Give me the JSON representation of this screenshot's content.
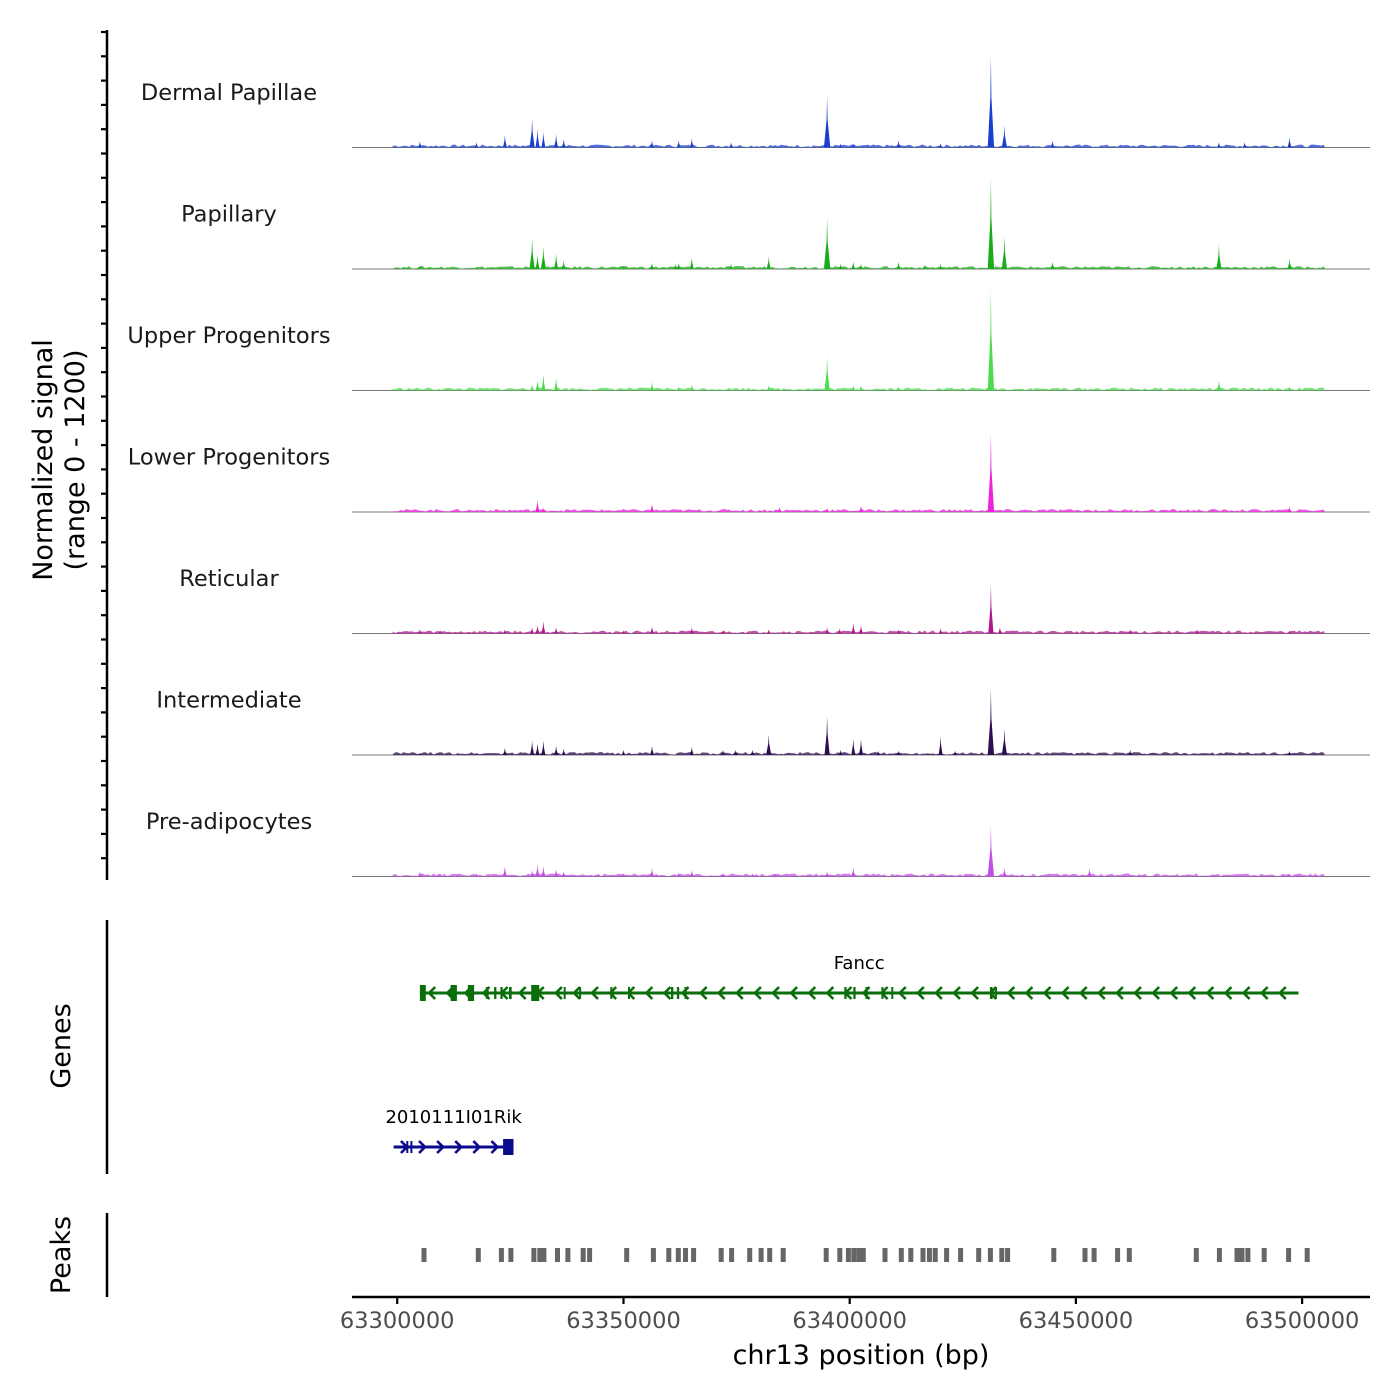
{
  "chart_data": {
    "type": "coverage-track",
    "chromosome": "chr13",
    "xlabel": "chr13 position (bp)",
    "xlim": [
      63290000,
      63515000
    ],
    "xticks": [
      63300000,
      63350000,
      63400000,
      63450000,
      63500000
    ],
    "ylabel_line1": "Normalized signal",
    "ylabel_line2": "(range 0 - 1200)",
    "yrange": [
      0,
      1200
    ],
    "tracks": [
      {
        "name": "Dermal Papillae",
        "color": "#1a3fd1",
        "peaks": [
          [
            63305000,
            0.06
          ],
          [
            63317500,
            0.05
          ],
          [
            63323800,
            0.12
          ],
          [
            63329800,
            0.28
          ],
          [
            63331000,
            0.18
          ],
          [
            63332300,
            0.15
          ],
          [
            63335100,
            0.13
          ],
          [
            63336800,
            0.08
          ],
          [
            63356300,
            0.07
          ],
          [
            63362200,
            0.07
          ],
          [
            63365100,
            0.09
          ],
          [
            63373800,
            0.05
          ],
          [
            63395000,
            0.5
          ],
          [
            63398000,
            0.04
          ],
          [
            63400800,
            0.04
          ],
          [
            63410800,
            0.07
          ],
          [
            63420100,
            0.04
          ],
          [
            63431200,
            0.9
          ],
          [
            63434200,
            0.22
          ],
          [
            63444800,
            0.07
          ],
          [
            63481600,
            0.05
          ],
          [
            63487300,
            0.05
          ],
          [
            63497200,
            0.1
          ]
        ]
      },
      {
        "name": "Papillary",
        "color": "#1aad1a",
        "peaks": [
          [
            63305000,
            0.03
          ],
          [
            63329800,
            0.3
          ],
          [
            63331000,
            0.14
          ],
          [
            63332300,
            0.22
          ],
          [
            63335100,
            0.15
          ],
          [
            63336800,
            0.08
          ],
          [
            63350000,
            0.03
          ],
          [
            63356300,
            0.06
          ],
          [
            63361500,
            0.05
          ],
          [
            63362200,
            0.06
          ],
          [
            63365100,
            0.11
          ],
          [
            63373800,
            0.05
          ],
          [
            63382100,
            0.12
          ],
          [
            63395000,
            0.5
          ],
          [
            63398000,
            0.05
          ],
          [
            63400800,
            0.07
          ],
          [
            63402500,
            0.05
          ],
          [
            63410800,
            0.07
          ],
          [
            63416600,
            0.04
          ],
          [
            63420100,
            0.05
          ],
          [
            63431200,
            0.9
          ],
          [
            63434200,
            0.32
          ],
          [
            63444800,
            0.07
          ],
          [
            63481600,
            0.24
          ],
          [
            63497200,
            0.1
          ]
        ]
      },
      {
        "name": "Upper Progenitors",
        "color": "#4ddb4d",
        "peaks": [
          [
            63329800,
            0.06
          ],
          [
            63331000,
            0.1
          ],
          [
            63332300,
            0.16
          ],
          [
            63335100,
            0.12
          ],
          [
            63356300,
            0.08
          ],
          [
            63362200,
            0.04
          ],
          [
            63365100,
            0.06
          ],
          [
            63382100,
            0.05
          ],
          [
            63395000,
            0.33
          ],
          [
            63400800,
            0.05
          ],
          [
            63402500,
            0.05
          ],
          [
            63410800,
            0.04
          ],
          [
            63431200,
            1.0
          ],
          [
            63481600,
            0.1
          ],
          [
            63497200,
            0.04
          ]
        ]
      },
      {
        "name": "Lower Progenitors",
        "color": "#ee22dd",
        "peaks": [
          [
            63305000,
            0.02
          ],
          [
            63331000,
            0.12
          ],
          [
            63332300,
            0.04
          ],
          [
            63356300,
            0.08
          ],
          [
            63384500,
            0.05
          ],
          [
            63395000,
            0.04
          ],
          [
            63402500,
            0.06
          ],
          [
            63431200,
            0.78
          ],
          [
            63497200,
            0.05
          ]
        ]
      },
      {
        "name": "Reticular",
        "color": "#b0178f",
        "peaks": [
          [
            63305000,
            0.04
          ],
          [
            63309500,
            0.03
          ],
          [
            63323800,
            0.04
          ],
          [
            63329800,
            0.06
          ],
          [
            63331000,
            0.08
          ],
          [
            63332300,
            0.12
          ],
          [
            63335100,
            0.06
          ],
          [
            63350000,
            0.03
          ],
          [
            63356300,
            0.07
          ],
          [
            63365100,
            0.06
          ],
          [
            63372000,
            0.03
          ],
          [
            63382100,
            0.04
          ],
          [
            63395000,
            0.06
          ],
          [
            63397800,
            0.05
          ],
          [
            63400800,
            0.1
          ],
          [
            63402500,
            0.08
          ],
          [
            63410800,
            0.04
          ],
          [
            63420100,
            0.05
          ],
          [
            63431200,
            0.48
          ],
          [
            63433200,
            0.06
          ],
          [
            63462000,
            0.04
          ],
          [
            63476800,
            0.04
          ],
          [
            63497200,
            0.03
          ]
        ]
      },
      {
        "name": "Intermediate",
        "color": "#2e0e50",
        "peaks": [
          [
            63305000,
            0.02
          ],
          [
            63323800,
            0.07
          ],
          [
            63329800,
            0.14
          ],
          [
            63331000,
            0.11
          ],
          [
            63332300,
            0.14
          ],
          [
            63335100,
            0.09
          ],
          [
            63336800,
            0.06
          ],
          [
            63350000,
            0.05
          ],
          [
            63356300,
            0.09
          ],
          [
            63365100,
            0.08
          ],
          [
            63372000,
            0.05
          ],
          [
            63374800,
            0.05
          ],
          [
            63378500,
            0.05
          ],
          [
            63382100,
            0.2
          ],
          [
            63395000,
            0.38
          ],
          [
            63398000,
            0.05
          ],
          [
            63400800,
            0.16
          ],
          [
            63402500,
            0.16
          ],
          [
            63406300,
            0.04
          ],
          [
            63410800,
            0.04
          ],
          [
            63420100,
            0.18
          ],
          [
            63423300,
            0.04
          ],
          [
            63431200,
            0.65
          ],
          [
            63434200,
            0.26
          ],
          [
            63462000,
            0.05
          ],
          [
            63497200,
            0.04
          ]
        ]
      },
      {
        "name": "Pre-adipocytes",
        "color": "#c34de8",
        "peaks": [
          [
            63305000,
            0.05
          ],
          [
            63309500,
            0.03
          ],
          [
            63317500,
            0.03
          ],
          [
            63323800,
            0.1
          ],
          [
            63329800,
            0.06
          ],
          [
            63331000,
            0.12
          ],
          [
            63332300,
            0.1
          ],
          [
            63335100,
            0.07
          ],
          [
            63336800,
            0.05
          ],
          [
            63344500,
            0.03
          ],
          [
            63350000,
            0.03
          ],
          [
            63356300,
            0.08
          ],
          [
            63362200,
            0.04
          ],
          [
            63365100,
            0.06
          ],
          [
            63372000,
            0.03
          ],
          [
            63378500,
            0.03
          ],
          [
            63383500,
            0.03
          ],
          [
            63395000,
            0.05
          ],
          [
            63400800,
            0.09
          ],
          [
            63431200,
            0.5
          ],
          [
            63434200,
            0.08
          ],
          [
            63453000,
            0.08
          ],
          [
            63497200,
            0.03
          ]
        ]
      }
    ],
    "genes": [
      {
        "name": "Fancc",
        "strand": "-",
        "color": "#0a6e0a",
        "start": 63305000,
        "end": 63499200,
        "exons": [
          [
            63305000,
            63306300
          ],
          [
            63311800,
            63313200
          ],
          [
            63315600,
            63317000
          ],
          [
            63319600,
            63320200
          ],
          [
            63321400,
            63321900
          ],
          [
            63322800,
            63323300
          ],
          [
            63324700,
            63325300
          ],
          [
            63329600,
            63331400
          ],
          [
            63336800,
            63337200
          ],
          [
            63340200,
            63340600
          ],
          [
            63347100,
            63347500
          ],
          [
            63351000,
            63351400
          ],
          [
            63360500,
            63361000
          ],
          [
            63361800,
            63362300
          ],
          [
            63363500,
            63364000
          ],
          [
            63398800,
            63399300
          ],
          [
            63400800,
            63401300
          ],
          [
            63403500,
            63404000
          ],
          [
            63407000,
            63407400
          ],
          [
            63409200,
            63409600
          ],
          [
            63431000,
            63431600
          ],
          [
            63432100,
            63432500
          ]
        ]
      },
      {
        "name": "2010111I01Rik",
        "strand": "+",
        "color": "#0a0a8c",
        "start": 63299200,
        "end": 63325700,
        "exons": [
          [
            63302000,
            63302400
          ],
          [
            63302900,
            63303300
          ],
          [
            63323400,
            63325700
          ]
        ]
      }
    ],
    "peak_regions": [
      63305800,
      63317800,
      63322900,
      63325000,
      63330100,
      63331400,
      63332300,
      63335300,
      63337600,
      63341000,
      63342400,
      63350600,
      63356500,
      63359900,
      63362000,
      63363600,
      63365400,
      63371500,
      63373800,
      63377800,
      63380300,
      63382200,
      63385200,
      63394700,
      63397700,
      63399600,
      63400800,
      63401900,
      63402900,
      63407700,
      63411300,
      63413400,
      63416100,
      63417500,
      63418800,
      63421300,
      63424400,
      63428400,
      63431000,
      63433500,
      63434800,
      63445000,
      63451900,
      63453900,
      63459100,
      63461700,
      63476500,
      63481600,
      63485500,
      63486600,
      63487900,
      63491500,
      63496900,
      63501000
    ],
    "panels": {
      "genes_label": "Genes",
      "peaks_label": "Peaks"
    }
  }
}
